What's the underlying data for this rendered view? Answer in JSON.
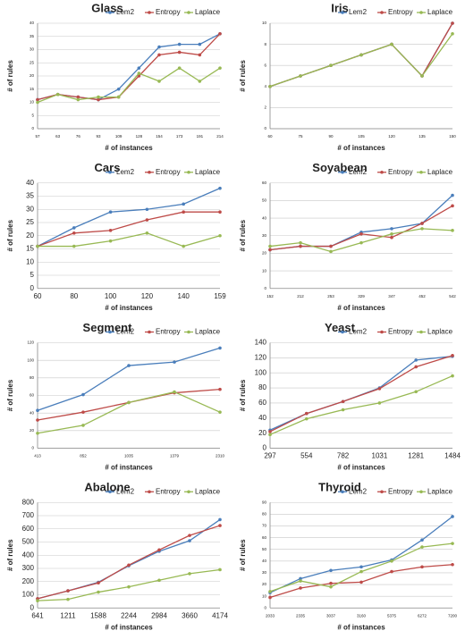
{
  "chart_data": [
    {
      "type": "line",
      "title": "Glass",
      "x_label": "# of instances",
      "y_label": "# of rules",
      "categories": [
        "57",
        "63",
        "76",
        "93",
        "109",
        "128",
        "154",
        "173",
        "191",
        "214"
      ],
      "series": [
        {
          "name": "Lem2",
          "color": "#4a7ebb",
          "values": [
            11,
            13,
            12,
            11,
            15,
            23,
            31,
            32,
            32,
            36
          ]
        },
        {
          "name": "Entropy",
          "color": "#be4b48",
          "values": [
            11,
            13,
            12,
            11,
            12,
            20,
            28,
            29,
            28,
            36
          ]
        },
        {
          "name": "Laplace",
          "color": "#98b954",
          "values": [
            10,
            13,
            11,
            12,
            12,
            21,
            18,
            23,
            18,
            23
          ]
        }
      ],
      "ylim": [
        0,
        40
      ],
      "yticks": [
        0,
        5,
        10,
        15,
        20,
        25,
        30,
        35,
        40
      ],
      "grid": true
    },
    {
      "type": "line",
      "title": "Iris",
      "x_label": "# of instances",
      "y_label": "# of rules",
      "categories": [
        "60",
        "75",
        "90",
        "105",
        "120",
        "135",
        "150"
      ],
      "series": [
        {
          "name": "Lem2",
          "color": "#4a7ebb",
          "values": [
            4,
            5,
            6,
            7,
            8,
            5,
            10
          ]
        },
        {
          "name": "Entropy",
          "color": "#be4b48",
          "values": [
            4,
            5,
            6,
            7,
            8,
            5,
            10
          ]
        },
        {
          "name": "Laplace",
          "color": "#98b954",
          "values": [
            4,
            5,
            6,
            7,
            8,
            5,
            9
          ]
        }
      ],
      "ylim": [
        0,
        10
      ],
      "yticks": [
        0,
        2,
        4,
        6,
        8,
        10
      ],
      "grid": true
    },
    {
      "type": "line",
      "title": "Cars",
      "x_label": "# of instances",
      "y_label": "# of rules",
      "categories": [
        "60",
        "80",
        "100",
        "120",
        "140",
        "159"
      ],
      "series": [
        {
          "name": "Lem2",
          "color": "#4a7ebb",
          "values": [
            16,
            23,
            29,
            30,
            32,
            38
          ]
        },
        {
          "name": "Entropy",
          "color": "#be4b48",
          "values": [
            16,
            21,
            22,
            26,
            29,
            29
          ]
        },
        {
          "name": "Laplace",
          "color": "#98b954",
          "values": [
            16,
            16,
            18,
            21,
            16,
            20
          ]
        }
      ],
      "ylim": [
        0,
        40
      ],
      "yticks": [
        0,
        5,
        10,
        15,
        20,
        25,
        30,
        35,
        40
      ],
      "grid": true
    },
    {
      "type": "line",
      "title": "Soyabean",
      "x_label": "# of instances",
      "y_label": "# of rules",
      "categories": [
        "152",
        "212",
        "253",
        "329",
        "347",
        "452",
        "542"
      ],
      "series": [
        {
          "name": "Lem2",
          "color": "#4a7ebb",
          "values": [
            22,
            24,
            24,
            32,
            34,
            37,
            53
          ]
        },
        {
          "name": "Entropy",
          "color": "#be4b48",
          "values": [
            22,
            24,
            24,
            31,
            29,
            37,
            47
          ]
        },
        {
          "name": "Laplace",
          "color": "#98b954",
          "values": [
            24,
            26,
            21,
            26,
            31,
            34,
            33
          ]
        }
      ],
      "ylim": [
        0,
        60
      ],
      "yticks": [
        0,
        10,
        20,
        30,
        40,
        50,
        60
      ],
      "grid": true
    },
    {
      "type": "line",
      "title": "Segment",
      "x_label": "# of instances",
      "y_label": "# of rules",
      "categories": [
        "413",
        "852",
        "1035",
        "1379",
        "2310"
      ],
      "series": [
        {
          "name": "Lem2",
          "color": "#4a7ebb",
          "values": [
            43,
            61,
            94,
            98,
            114
          ]
        },
        {
          "name": "Entropy",
          "color": "#be4b48",
          "values": [
            32,
            41,
            52,
            63,
            67
          ]
        },
        {
          "name": "Laplace",
          "color": "#98b954",
          "values": [
            17,
            26,
            52,
            64,
            41
          ]
        }
      ],
      "ylim": [
        0,
        120
      ],
      "yticks": [
        0,
        20,
        40,
        60,
        80,
        100,
        120
      ],
      "grid": true
    },
    {
      "type": "line",
      "title": "Yeast",
      "x_label": "# of instances",
      "y_label": "# of rules",
      "categories": [
        "297",
        "554",
        "782",
        "1031",
        "1281",
        "1484"
      ],
      "series": [
        {
          "name": "Lem2",
          "color": "#4a7ebb",
          "values": [
            24,
            46,
            62,
            80,
            117,
            122
          ]
        },
        {
          "name": "Entropy",
          "color": "#be4b48",
          "values": [
            22,
            46,
            62,
            79,
            108,
            123
          ]
        },
        {
          "name": "Laplace",
          "color": "#98b954",
          "values": [
            18,
            39,
            51,
            60,
            75,
            96
          ]
        }
      ],
      "ylim": [
        0,
        140
      ],
      "yticks": [
        0,
        20,
        40,
        60,
        80,
        100,
        120,
        140
      ],
      "grid": true
    },
    {
      "type": "line",
      "title": "Abalone",
      "x_label": "# of instances",
      "y_label": "# of rules",
      "categories": [
        "641",
        "1211",
        "1588",
        "2244",
        "2984",
        "3660",
        "4174"
      ],
      "series": [
        {
          "name": "Lem2",
          "color": "#4a7ebb",
          "values": [
            70,
            130,
            195,
            320,
            430,
            510,
            670
          ]
        },
        {
          "name": "Entropy",
          "color": "#be4b48",
          "values": [
            70,
            130,
            190,
            325,
            440,
            550,
            625
          ]
        },
        {
          "name": "Laplace",
          "color": "#98b954",
          "values": [
            55,
            65,
            120,
            160,
            210,
            260,
            290
          ]
        }
      ],
      "ylim": [
        0,
        800
      ],
      "yticks": [
        0,
        100,
        200,
        300,
        400,
        500,
        600,
        700,
        800
      ],
      "grid": true
    },
    {
      "type": "line",
      "title": "Thyroid",
      "x_label": "# of instances",
      "y_label": "# of rules",
      "categories": [
        "2033",
        "2335",
        "3037",
        "3160",
        "5375",
        "6272",
        "7200"
      ],
      "series": [
        {
          "name": "Lem2",
          "color": "#4a7ebb",
          "values": [
            13,
            25,
            32,
            35,
            41,
            58,
            78
          ]
        },
        {
          "name": "Entropy",
          "color": "#be4b48",
          "values": [
            9,
            17,
            21,
            22,
            31,
            35,
            37
          ]
        },
        {
          "name": "Laplace",
          "color": "#98b954",
          "values": [
            14,
            23,
            18,
            31,
            40,
            52,
            55
          ]
        }
      ],
      "ylim": [
        0,
        90
      ],
      "yticks": [
        0,
        10,
        20,
        30,
        40,
        50,
        60,
        70,
        80,
        90
      ],
      "grid": true
    }
  ]
}
